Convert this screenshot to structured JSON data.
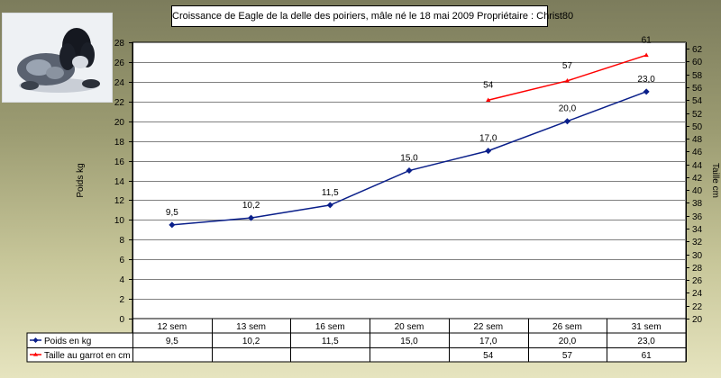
{
  "title": "Croissance de Eagle de la delle des poiriers, mâle né le 18 mai 2009   Propriétaire : Christ80",
  "colors": {
    "weight": "#0a1f8a",
    "height": "#ff0000",
    "plot_bg": "#ffffff",
    "grid": "#808080"
  },
  "chart_data": {
    "type": "line",
    "title": "Croissance de Eagle de la delle des poiriers, mâle né le 18 mai 2009   Propriétaire : Christ80",
    "categories": [
      "12 sem",
      "13 sem",
      "16 sem",
      "20 sem",
      "22 sem",
      "26 sem",
      "31 sem"
    ],
    "ylabel": "Poids kg",
    "y2label": "Taille cm",
    "ylim": [
      0,
      28
    ],
    "ytick_step": 2,
    "y2lim": [
      20,
      63
    ],
    "y2tick_step": 2,
    "y2_ticks": [
      "20",
      "22",
      "24",
      "26",
      "28",
      "30",
      "32",
      "34",
      "36",
      "38",
      "40",
      "42",
      "44",
      "46",
      "48",
      "50",
      "52",
      "54",
      "56",
      "58",
      "60",
      "62"
    ],
    "y_ticks": [
      "0",
      "2",
      "4",
      "6",
      "8",
      "10",
      "12",
      "14",
      "16",
      "18",
      "20",
      "22",
      "24",
      "26",
      "28"
    ],
    "grid": true,
    "data_table": true,
    "series": [
      {
        "name": "Poids en kg",
        "axis": "left",
        "marker": "diamond",
        "values": [
          9.5,
          10.2,
          11.5,
          15.0,
          17.0,
          20.0,
          23.0
        ],
        "labels": [
          "9,5",
          "10,2",
          "11,5",
          "15,0",
          "17,0",
          "20,0",
          "23,0"
        ]
      },
      {
        "name": "Taille au garrot en cm",
        "axis": "right",
        "marker": "triangle",
        "values": [
          null,
          null,
          null,
          null,
          54,
          57,
          61
        ],
        "labels": [
          "",
          "",
          "",
          "",
          "54",
          "57",
          "61"
        ]
      }
    ]
  }
}
